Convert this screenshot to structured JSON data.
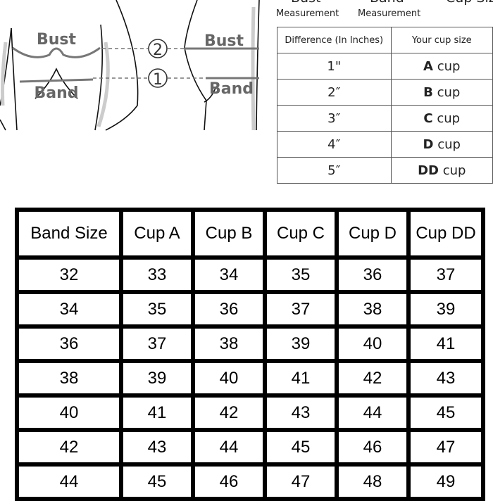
{
  "illustration": {
    "front_bust_label": "Bust",
    "front_band_label": "Band",
    "side_bust_label": "Bust",
    "side_band_label": "Band",
    "marker_bust": "2",
    "marker_band": "1"
  },
  "formula": {
    "term1": "Bust",
    "minus": "–",
    "term2": "Band",
    "equals": "=",
    "result": "Cup Size",
    "term1_sub": "Measurement",
    "term2_sub": "Measurement"
  },
  "difference_table": {
    "headers": [
      "Difference (In Inches)",
      "Your cup size"
    ],
    "rows": [
      {
        "diff": "1\"",
        "letter": "A",
        "suffix": " cup"
      },
      {
        "diff": "2″",
        "letter": "B",
        "suffix": " cup"
      },
      {
        "diff": "3″",
        "letter": "C",
        "suffix": " cup"
      },
      {
        "diff": "4″",
        "letter": "D",
        "suffix": " cup"
      },
      {
        "diff": "5″",
        "letter": "DD",
        "suffix": " cup"
      }
    ]
  },
  "size_table": {
    "headers": [
      "Band Size",
      "Cup A",
      "Cup B",
      "Cup C",
      "Cup D",
      "Cup DD"
    ],
    "rows": [
      [
        "32",
        "33",
        "34",
        "35",
        "36",
        "37"
      ],
      [
        "34",
        "35",
        "36",
        "37",
        "38",
        "39"
      ],
      [
        "36",
        "37",
        "38",
        "39",
        "40",
        "41"
      ],
      [
        "38",
        "39",
        "40",
        "41",
        "42",
        "43"
      ],
      [
        "40",
        "41",
        "42",
        "43",
        "44",
        "45"
      ],
      [
        "42",
        "43",
        "44",
        "45",
        "46",
        "47"
      ],
      [
        "44",
        "45",
        "46",
        "47",
        "48",
        "49"
      ]
    ]
  }
}
